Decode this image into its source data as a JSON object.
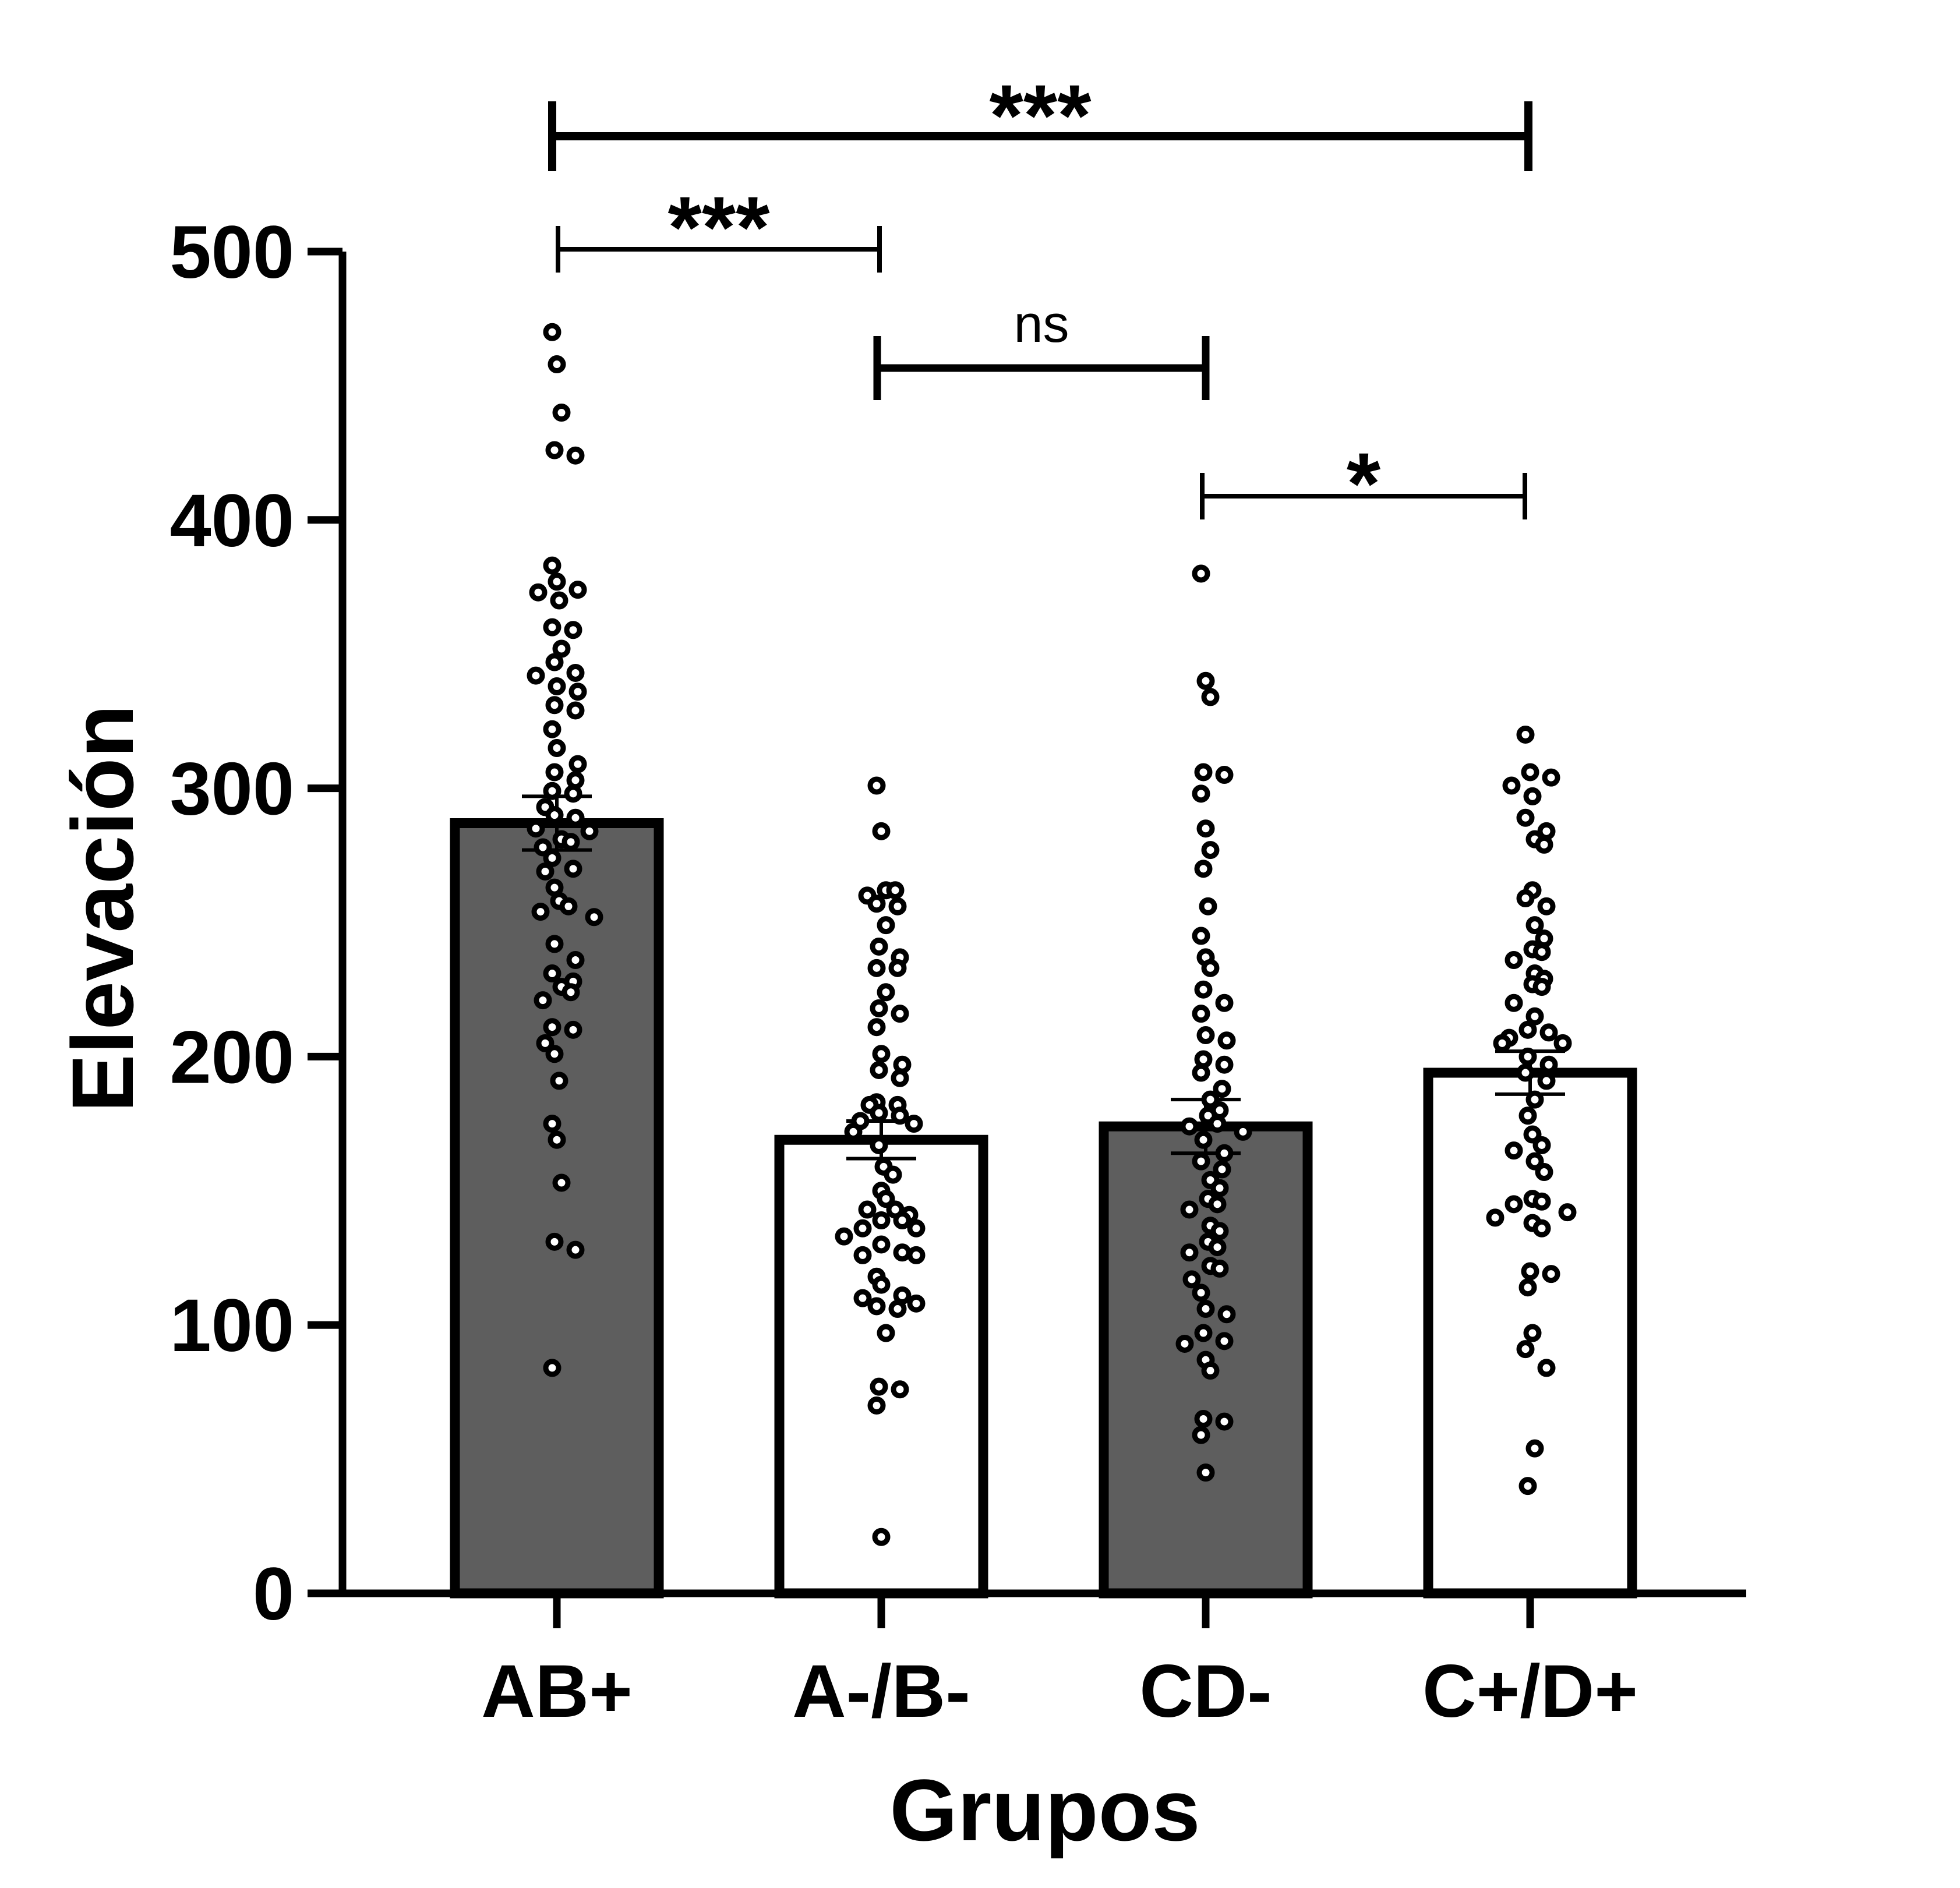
{
  "chart_data": {
    "type": "bar",
    "xlabel": "Grupos",
    "ylabel": "Elevación",
    "ylim": [
      0,
      500
    ],
    "yticks": [
      0,
      100,
      200,
      300,
      400,
      500
    ],
    "categories": [
      "AB+",
      "A-/B-",
      "CD-",
      "C+/D+"
    ],
    "values": [
      287,
      169,
      174,
      194
    ],
    "error": [
      10,
      7,
      10,
      8
    ],
    "bar_colors": [
      "#5e5e5e",
      "#ffffff",
      "#5e5e5e",
      "#ffffff"
    ],
    "points": [
      [
        470,
        458,
        440,
        426,
        424,
        383,
        377,
        374,
        373,
        370,
        360,
        359,
        352,
        347,
        343,
        342,
        338,
        336,
        331,
        329,
        322,
        315,
        309,
        306,
        303,
        299,
        298,
        293,
        290,
        289,
        285,
        284,
        281,
        280,
        278,
        274,
        270,
        269,
        263,
        258,
        256,
        254,
        252,
        242,
        236,
        231,
        228,
        226,
        224,
        221,
        211,
        210,
        205,
        201,
        191,
        175,
        169,
        153,
        131,
        128,
        84
      ],
      [
        301,
        284,
        262,
        262,
        260,
        257,
        256,
        249,
        241,
        237,
        233,
        233,
        224,
        218,
        216,
        211,
        201,
        197,
        195,
        192,
        183,
        182,
        182,
        179,
        178,
        176,
        175,
        172,
        167,
        159,
        156,
        150,
        147,
        143,
        143,
        141,
        139,
        139,
        136,
        136,
        133,
        130,
        127,
        126,
        126,
        118,
        115,
        111,
        110,
        108,
        107,
        106,
        97,
        77,
        76,
        70,
        21
      ],
      [
        380,
        340,
        334,
        306,
        305,
        298,
        285,
        277,
        270,
        256,
        245,
        237,
        233,
        225,
        220,
        216,
        208,
        206,
        199,
        197,
        194,
        188,
        184,
        180,
        178,
        175,
        174,
        172,
        169,
        164,
        161,
        158,
        154,
        151,
        147,
        145,
        143,
        137,
        135,
        131,
        129,
        127,
        122,
        121,
        117,
        112,
        106,
        104,
        97,
        94,
        93,
        87,
        83,
        65,
        64,
        59,
        45
      ],
      [
        320,
        306,
        304,
        301,
        297,
        289,
        284,
        281,
        279,
        262,
        259,
        256,
        249,
        244,
        240,
        239,
        236,
        231,
        229,
        227,
        226,
        220,
        215,
        210,
        209,
        207,
        205,
        205,
        200,
        197,
        194,
        191,
        184,
        178,
        171,
        167,
        165,
        161,
        157,
        147,
        146,
        145,
        142,
        140,
        138,
        136,
        120,
        119,
        114,
        97,
        91,
        84,
        54,
        40
      ]
    ],
    "comparisons": [
      {
        "from": 0,
        "to": 3,
        "label": "***"
      },
      {
        "from": 0,
        "to": 1,
        "label": "***"
      },
      {
        "from": 1,
        "to": 2,
        "label": "ns"
      },
      {
        "from": 2,
        "to": 3,
        "label": "*"
      }
    ]
  }
}
